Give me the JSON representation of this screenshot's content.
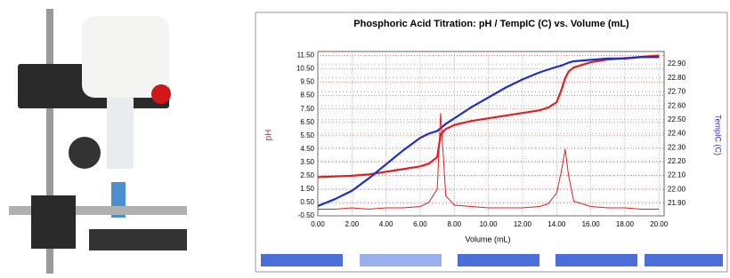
{
  "chart_data": {
    "type": "line",
    "title": "Phosphoric Acid Titration: pH / TempIC (C) vs. Volume (mL)",
    "xlabel": "Volume (mL)",
    "ylabel": "pH",
    "y2label": "TempIC (C)",
    "x": [
      0,
      1,
      2,
      3,
      4,
      5,
      6,
      6.5,
      7,
      7.2,
      7.5,
      8,
      9,
      10,
      11,
      12,
      13,
      13.5,
      14,
      14.3,
      14.5,
      14.7,
      15,
      16,
      17,
      18,
      19,
      20
    ],
    "series": [
      {
        "color": "#e02020",
        "values": [
          2.4,
          2.45,
          2.5,
          2.6,
          2.8,
          3.0,
          3.2,
          3.4,
          3.9,
          5.6,
          6.0,
          6.3,
          6.6,
          6.8,
          7.0,
          7.2,
          7.4,
          7.6,
          8.0,
          9.0,
          9.8,
          10.3,
          10.6,
          11.0,
          11.2,
          11.3,
          11.4,
          11.5
        ]
      },
      {
        "color": "#1a2fd0",
        "axis": "y2",
        "values": [
          21.88,
          21.93,
          21.99,
          22.08,
          22.18,
          22.28,
          22.37,
          22.4,
          22.42,
          22.44,
          22.47,
          22.51,
          22.59,
          22.66,
          22.73,
          22.79,
          22.84,
          22.86,
          22.88,
          22.89,
          22.9,
          22.91,
          22.92,
          22.93,
          22.94,
          22.94,
          22.95,
          22.95
        ]
      },
      {
        "color": "#e02020",
        "values": [
          0.0,
          0.0,
          0.1,
          0.0,
          0.1,
          0.1,
          0.2,
          0.5,
          1.5,
          7.2,
          1.0,
          0.3,
          0.2,
          0.1,
          0.1,
          0.1,
          0.2,
          0.4,
          1.2,
          3.0,
          4.5,
          2.5,
          0.6,
          0.2,
          0.1,
          0.1,
          0.0,
          0.0
        ]
      }
    ],
    "xlim": [
      0,
      20.3
    ],
    "xticks": [
      {
        "value": 0,
        "label": "0.00"
      },
      {
        "value": 2,
        "label": "2.00"
      },
      {
        "value": 4,
        "label": "4.00"
      },
      {
        "value": 6,
        "label": "6.00"
      },
      {
        "value": 8,
        "label": "8.00"
      },
      {
        "value": 10,
        "label": "10.00"
      },
      {
        "value": 12,
        "label": "12.00"
      },
      {
        "value": 14,
        "label": "14.00"
      },
      {
        "value": 16,
        "label": "16.00"
      },
      {
        "value": 18,
        "label": "18.00"
      },
      {
        "value": 20,
        "label": "20.00"
      }
    ],
    "ylim": [
      -0.5,
      11.8
    ],
    "yticks": [
      {
        "value": -0.5,
        "label": "-0.50"
      },
      {
        "value": 0.5,
        "label": "0.50"
      },
      {
        "value": 1.5,
        "label": "1.50"
      },
      {
        "value": 2.5,
        "label": "2.50"
      },
      {
        "value": 3.5,
        "label": "3.50"
      },
      {
        "value": 4.5,
        "label": "4.50"
      },
      {
        "value": 5.5,
        "label": "5.50"
      },
      {
        "value": 6.5,
        "label": "6.50"
      },
      {
        "value": 7.5,
        "label": "7.50"
      },
      {
        "value": 8.5,
        "label": "8.50"
      },
      {
        "value": 9.5,
        "label": "9.50"
      },
      {
        "value": 10.5,
        "label": "10.50"
      },
      {
        "value": 11.5,
        "label": "11.50"
      }
    ],
    "y2lim": [
      21.81,
      22.99
    ],
    "y2ticks": [
      {
        "value": 21.9,
        "label": "21.90"
      },
      {
        "value": 22,
        "label": "22.00"
      },
      {
        "value": 22.1,
        "label": "22.10"
      },
      {
        "value": 22.2,
        "label": "22.20"
      },
      {
        "value": 22.3,
        "label": "22.30"
      },
      {
        "value": 22.4,
        "label": "22.40"
      },
      {
        "value": 22.5,
        "label": "22.50"
      },
      {
        "value": 22.6,
        "label": "22.60"
      },
      {
        "value": 22.7,
        "label": "22.70"
      },
      {
        "value": 22.8,
        "label": "22.80"
      },
      {
        "value": 22.9,
        "label": "22.90"
      }
    ],
    "grid": true
  }
}
